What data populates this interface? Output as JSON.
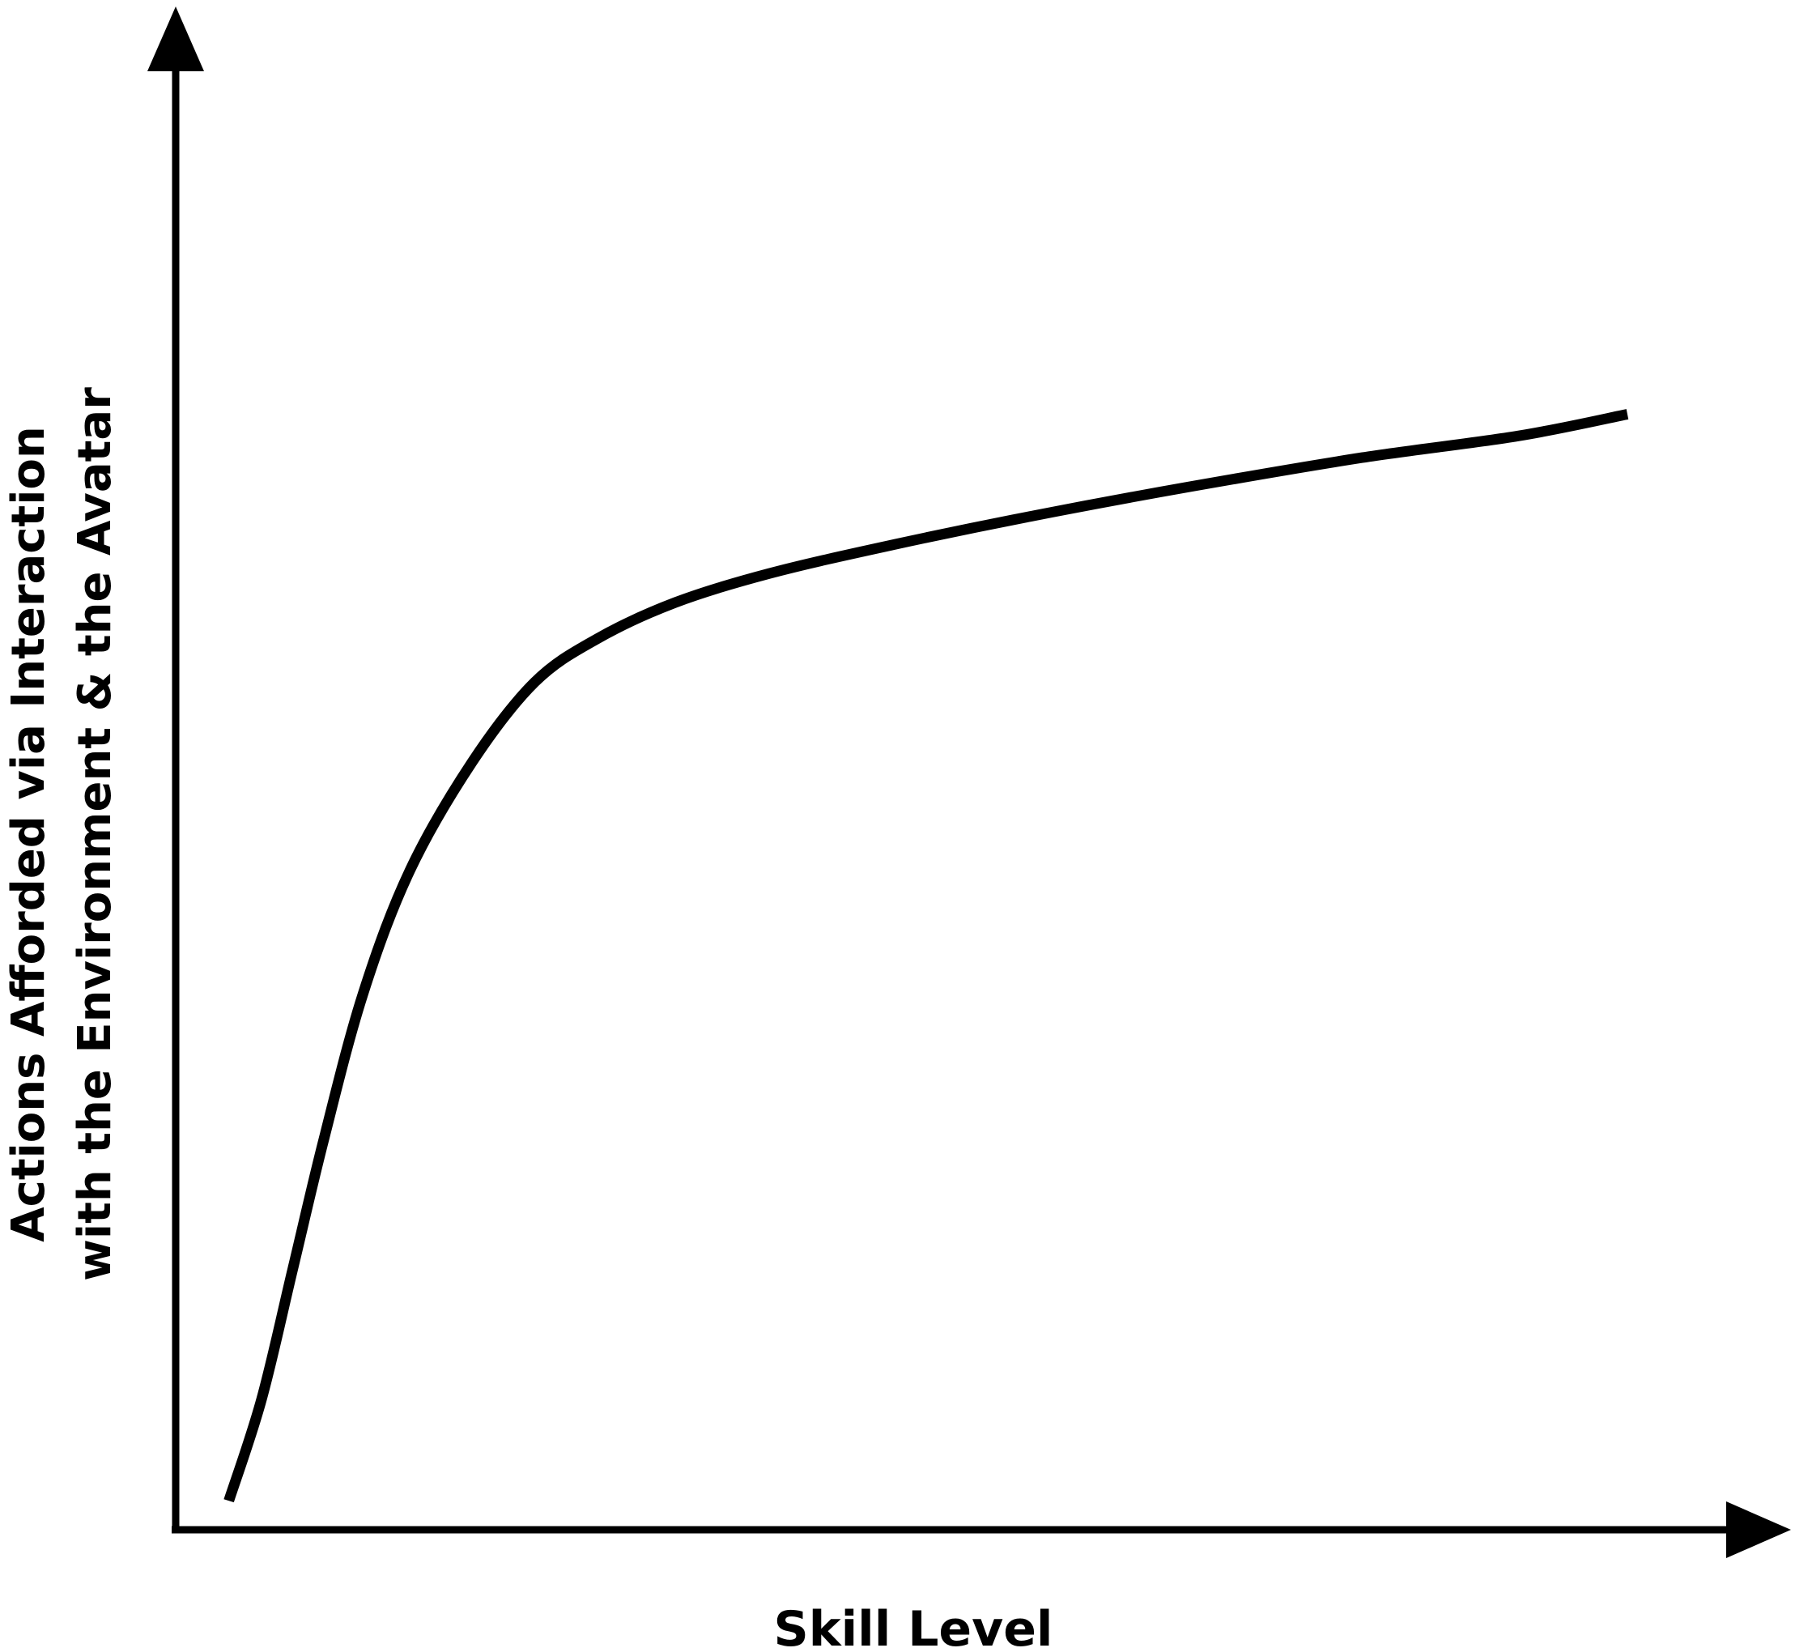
{
  "chart_data": {
    "type": "line",
    "title": "",
    "xlabel": "Skill Level",
    "ylabel": [
      "Actions Afforded via Interaction",
      "with the Environment & the Avatar"
    ],
    "xlim": [
      0,
      100
    ],
    "ylim": [
      0,
      100
    ],
    "grid": false,
    "ticks": false,
    "legend": "none",
    "line_color": "#000000",
    "series": [
      {
        "values": [
          {
            "x": 3.4,
            "y": 2
          },
          {
            "x": 5.5,
            "y": 9
          },
          {
            "x": 7.5,
            "y": 18
          },
          {
            "x": 9.5,
            "y": 27
          },
          {
            "x": 12,
            "y": 37
          },
          {
            "x": 15,
            "y": 45.5
          },
          {
            "x": 19,
            "y": 53
          },
          {
            "x": 23,
            "y": 58.5
          },
          {
            "x": 27,
            "y": 61.5
          },
          {
            "x": 32,
            "y": 64
          },
          {
            "x": 38,
            "y": 66
          },
          {
            "x": 46,
            "y": 68
          },
          {
            "x": 55,
            "y": 70
          },
          {
            "x": 65,
            "y": 72
          },
          {
            "x": 76,
            "y": 74
          },
          {
            "x": 86,
            "y": 75.5
          },
          {
            "x": 93,
            "y": 77
          }
        ]
      }
    ]
  }
}
